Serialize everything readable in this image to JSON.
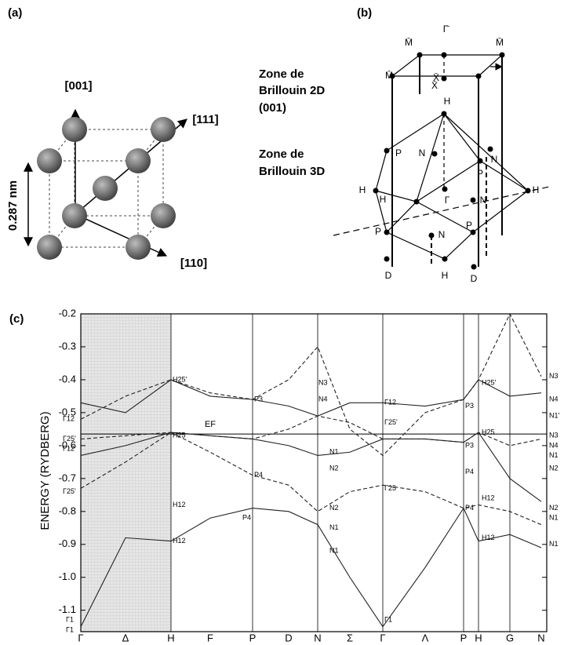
{
  "panel_a": {
    "label": "(a)",
    "dir_001": "[001]",
    "dir_111": "[111]",
    "dir_110": "[110]",
    "lattice": "0.287 nm"
  },
  "panel_b": {
    "label": "(b)",
    "zone2d": [
      "Zone de",
      "Brillouin 2D",
      "(001)"
    ],
    "zone3d": [
      "Zone de",
      "Brillouin 3D"
    ],
    "points": [
      "M̄",
      "Γ̄",
      "M̄",
      "X̄",
      "M̄",
      "X̄",
      "H",
      "N",
      "N",
      "P",
      "P",
      "H",
      "H",
      "Γ",
      "N",
      "H",
      "P",
      "N",
      "P",
      "D",
      "H",
      "D"
    ]
  },
  "chart_data": {
    "type": "line",
    "panel_label": "(c)",
    "y_label": "ENERGY (RYDBERG)",
    "fermi_label": "EF",
    "fermi_level": -0.565,
    "categories": [
      "Γ",
      "Δ",
      "H",
      "F",
      "P",
      "D",
      "N",
      "Σ",
      "Γ",
      "Λ",
      "P",
      "H",
      "G",
      "N"
    ],
    "ylim": [
      -1.165,
      -0.2
    ],
    "yticks": [
      -0.2,
      -0.3,
      -0.4,
      -0.5,
      -0.6,
      -0.7,
      -0.8,
      -0.9,
      {
        "value": -1,
        "label": "-1.0"
      },
      -1.1
    ],
    "series": [
      {
        "color": "#222",
        "values": [
          -1.15,
          -0.88,
          -0.89,
          -0.82,
          -0.79,
          -0.8,
          -0.84,
          -1.0,
          -1.15,
          -0.97,
          -0.79,
          -0.89,
          -0.87,
          -0.91
        ]
      },
      {
        "color": "#222",
        "values": [
          -0.73,
          -0.65,
          -0.56,
          -0.62,
          -0.69,
          -0.72,
          -0.8,
          -0.74,
          -0.72,
          -0.74,
          -0.79,
          -0.78,
          -0.8,
          -0.84
        ]
      },
      {
        "color": "#222",
        "values": [
          -0.63,
          -0.6,
          -0.56,
          -0.57,
          -0.58,
          -0.6,
          -0.63,
          -0.62,
          -0.58,
          -0.58,
          -0.59,
          -0.56,
          -0.7,
          -0.77
        ]
      },
      {
        "color": "#222",
        "values": [
          -0.58,
          -0.57,
          -0.56,
          -0.57,
          -0.58,
          -0.55,
          -0.51,
          -0.53,
          -0.58,
          -0.58,
          -0.59,
          -0.56,
          -0.6,
          -0.58
        ]
      },
      {
        "color": "#222",
        "values": [
          -0.47,
          -0.5,
          -0.4,
          -0.45,
          -0.46,
          -0.48,
          -0.51,
          -0.47,
          -0.47,
          -0.48,
          -0.46,
          -0.4,
          -0.45,
          -0.44
        ]
      },
      {
        "color": "#222",
        "values": [
          -0.52,
          -0.45,
          -0.4,
          -0.44,
          -0.46,
          -0.4,
          -0.3,
          -0.55,
          -0.63,
          -0.5,
          -0.46,
          -0.4,
          -0.2,
          -0.39
        ]
      }
    ],
    "level_labels": [
      {
        "text": "Γ12",
        "value": -0.52
      },
      {
        "text": "Γ25'",
        "value": -0.58
      },
      {
        "text": "Γ12",
        "value": -0.61
      },
      {
        "text": "Γ25'",
        "value": -0.74
      },
      {
        "text": "Γ1",
        "value": -1.13
      },
      {
        "text": "Γ1",
        "value": -1.16
      },
      {
        "text": "H25'",
        "value": -0.4
      },
      {
        "text": "H25",
        "value": -0.57
      },
      {
        "text": "H12",
        "value": -0.78
      },
      {
        "text": "H12",
        "value": -0.89
      },
      {
        "text": "P3",
        "value": -0.46
      },
      {
        "text": "P4",
        "value": -0.69
      },
      {
        "text": "P4",
        "value": -0.82
      },
      {
        "text": "N3",
        "value": -0.41
      },
      {
        "text": "N4",
        "value": -0.46
      },
      {
        "text": "N1",
        "value": -0.62
      },
      {
        "text": "N2",
        "value": -0.67
      },
      {
        "text": "N2",
        "value": -0.79
      },
      {
        "text": "N1",
        "value": -0.85
      },
      {
        "text": "N1",
        "value": -0.92
      },
      {
        "text": "Γ12",
        "value": -0.47
      },
      {
        "text": "Γ25'",
        "value": -0.53
      },
      {
        "text": "Γ25",
        "value": -0.73
      },
      {
        "text": "Γ1",
        "value": -1.13
      },
      {
        "text": "P3",
        "value": -0.48
      },
      {
        "text": "P3",
        "value": -0.6
      },
      {
        "text": "P4",
        "value": -0.68
      },
      {
        "text": "P4",
        "value": -0.79
      },
      {
        "text": "H25'",
        "value": -0.41
      },
      {
        "text": "H25",
        "value": -0.56
      },
      {
        "text": "H12",
        "value": -0.76
      },
      {
        "text": "H12",
        "value": -0.88
      },
      {
        "text": "N3",
        "value": -0.39
      },
      {
        "text": "N4",
        "value": -0.46
      },
      {
        "text": "N1'",
        "value": -0.51
      },
      {
        "text": "N3",
        "value": -0.57
      },
      {
        "text": "N4",
        "value": -0.6
      },
      {
        "text": "N1",
        "value": -0.63
      },
      {
        "text": "N2",
        "value": -0.67
      },
      {
        "text": "N2",
        "value": -0.79
      },
      {
        "text": "N1",
        "value": -0.82
      },
      {
        "text": "N1",
        "value": -0.9
      }
    ]
  }
}
